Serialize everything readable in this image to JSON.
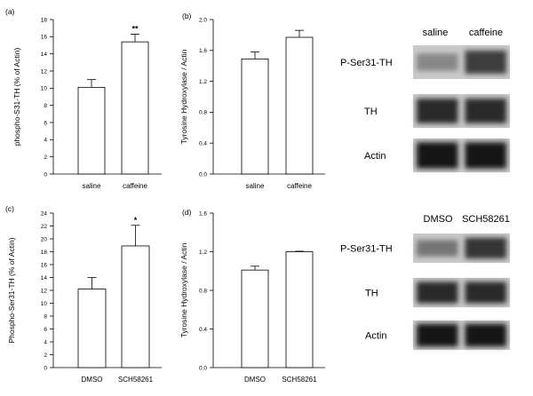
{
  "chart_data": [
    {
      "type": "bar",
      "panel": "(a)",
      "categories": [
        "saline",
        "caffeine"
      ],
      "values": [
        10.1,
        15.4
      ],
      "errors": [
        0.9,
        0.9
      ],
      "significance": [
        "",
        "**"
      ],
      "ylabel": "phospho-S31-TH (% of Actin)",
      "ylim": [
        0,
        18
      ],
      "yticks": [
        "0",
        "2",
        "4",
        "6",
        "8",
        "10",
        "12",
        "14",
        "16",
        "18"
      ],
      "yticks_values": [
        0,
        2,
        4,
        6,
        8,
        10,
        12,
        14,
        16,
        18
      ]
    },
    {
      "type": "bar",
      "panel": "(b)",
      "categories": [
        "saline",
        "caffeine"
      ],
      "values": [
        1.49,
        1.77
      ],
      "errors": [
        0.09,
        0.09
      ],
      "significance": [
        "",
        ""
      ],
      "ylabel": "Tyrosine Hydroxylase / Actin",
      "ylim": [
        0,
        2.0
      ],
      "yticks": [
        "0.0",
        "0.4",
        "0.8",
        "1.2",
        "1.6",
        "2.0"
      ],
      "yticks_values": [
        0,
        0.4,
        0.8,
        1.2,
        1.6,
        2.0
      ]
    },
    {
      "type": "bar",
      "panel": "(c)",
      "categories": [
        "DMSO",
        "SCH58261"
      ],
      "values": [
        12.2,
        18.9
      ],
      "errors": [
        1.8,
        3.2
      ],
      "significance": [
        "",
        "*"
      ],
      "ylabel": "Phospho-Ser31-TH (% of Actin)",
      "ylim": [
        0,
        24
      ],
      "yticks": [
        "0",
        "2",
        "4",
        "6",
        "8",
        "10",
        "12",
        "14",
        "16",
        "18",
        "20",
        "22",
        "24"
      ],
      "yticks_values": [
        0,
        2,
        4,
        6,
        8,
        10,
        12,
        14,
        16,
        18,
        20,
        22,
        24
      ]
    },
    {
      "type": "bar",
      "panel": "(d)",
      "categories": [
        "DMSO",
        "SCH58261"
      ],
      "values": [
        1.01,
        1.2
      ],
      "errors": [
        0.04,
        0.005
      ],
      "significance": [
        "",
        ""
      ],
      "ylabel": "Tyrosine Hydroxylase / Actin",
      "ylim": [
        0,
        1.6
      ],
      "yticks": [
        "0.0",
        "0.4",
        "0.8",
        "1.2",
        "1.6"
      ],
      "yticks_values": [
        0,
        0.4,
        0.8,
        1.2,
        1.6
      ]
    }
  ],
  "blots": [
    {
      "columns": [
        "saline",
        "caffeine"
      ],
      "rows": [
        "P-Ser31-TH",
        "TH",
        "Actin"
      ],
      "intensity": [
        [
          0.35,
          0.75
        ],
        [
          0.85,
          0.85
        ],
        [
          0.95,
          0.95
        ]
      ]
    },
    {
      "columns": [
        "DMSO",
        "SCH58261"
      ],
      "rows": [
        "P-Ser31-TH",
        "TH",
        "Actin"
      ],
      "intensity": [
        [
          0.45,
          0.8
        ],
        [
          0.85,
          0.85
        ],
        [
          0.95,
          0.95
        ]
      ]
    }
  ]
}
